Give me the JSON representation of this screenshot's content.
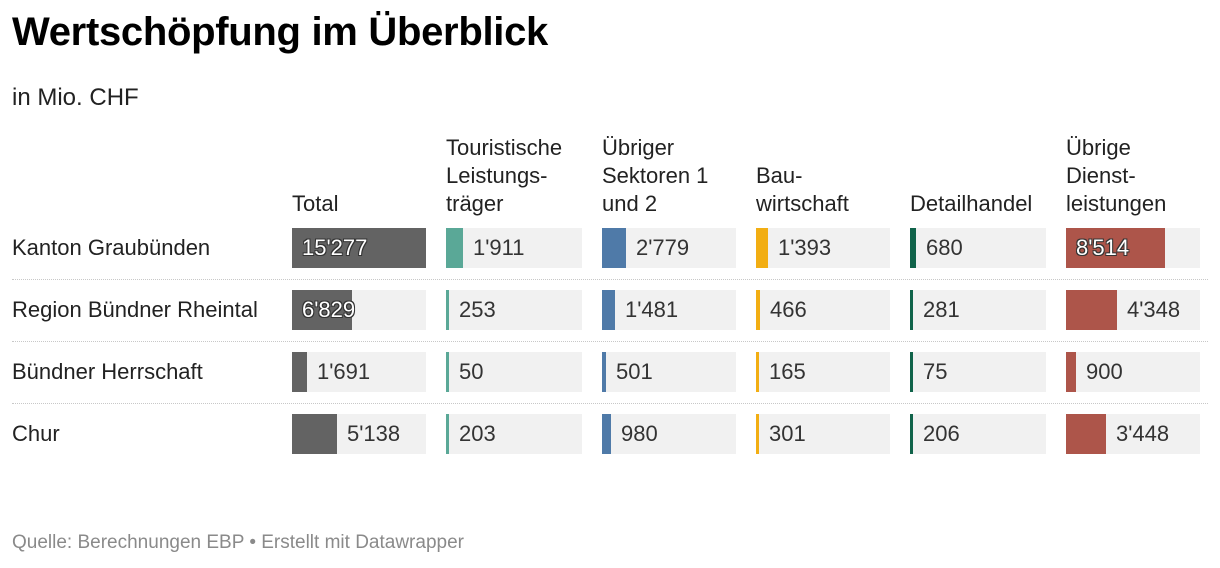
{
  "title": "Wertschöpfung im Überblick",
  "subtitle": "in Mio. CHF",
  "source": "Quelle: Berechnungen EBP • Erstellt mit Datawrapper",
  "chart_data": {
    "type": "table",
    "title": "Wertschöpfung im Überblick",
    "unit": "in Mio. CHF",
    "columns": [
      {
        "name": "Total",
        "color": "#636363"
      },
      {
        "name": "Touristische\nLeistungs-\nträger",
        "color": "#5aa897"
      },
      {
        "name": "Übriger\nSektoren 1\nund 2",
        "color": "#4f7aa8"
      },
      {
        "name": "Bau-\nwirtschaft",
        "color": "#f2ae13"
      },
      {
        "name": "Detailhandel",
        "color": "#10634a"
      },
      {
        "name": "Übrige\nDienst-\nleistungen",
        "color": "#ad554a"
      }
    ],
    "rows": [
      {
        "label": "Kanton Graubünden",
        "values": [
          15277,
          1911,
          2779,
          1393,
          680,
          8514
        ],
        "display": [
          "15'277",
          "1'911",
          "2'779",
          "1'393",
          "680",
          "8'514"
        ]
      },
      {
        "label": "Region Bündner Rheintal",
        "values": [
          6829,
          253,
          1481,
          466,
          281,
          4348
        ],
        "display": [
          "6'829",
          "253",
          "1'481",
          "466",
          "281",
          "4'348"
        ]
      },
      {
        "label": "Bündner Herrschaft",
        "values": [
          1691,
          50,
          501,
          165,
          75,
          900
        ],
        "display": [
          "1'691",
          "50",
          "501",
          "165",
          "75",
          "900"
        ]
      },
      {
        "label": "Chur",
        "values": [
          5138,
          203,
          980,
          301,
          206,
          3448
        ],
        "display": [
          "5'138",
          "203",
          "980",
          "301",
          "206",
          "3'448"
        ]
      }
    ],
    "column_max": [
      15277,
      15277,
      15277,
      15277,
      15277,
      11500
    ]
  }
}
